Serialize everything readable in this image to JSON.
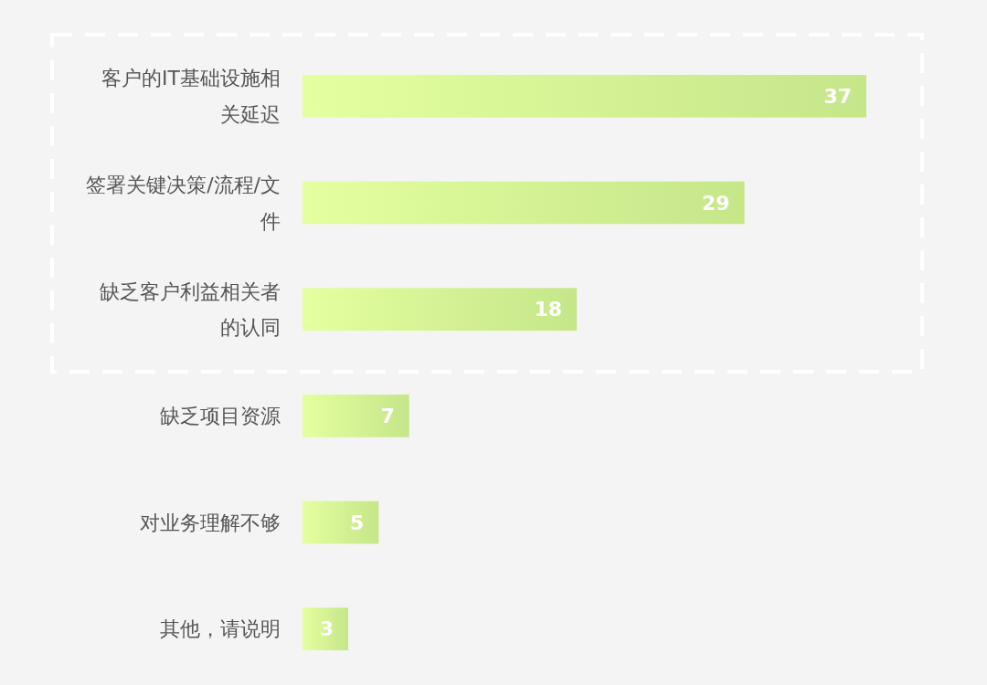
{
  "chart_data": {
    "type": "bar",
    "orientation": "horizontal",
    "categories": [
      "客户的IT基础设施相关延迟",
      "签署关键决策/流程/文件",
      "缺乏客户利益相关者的认同",
      "缺乏项目资源",
      "对业务理解不够",
      "其他，请说明"
    ],
    "values": [
      37,
      29,
      18,
      7,
      5,
      3
    ],
    "color": "#c6e68a",
    "data_labels": true
  }
}
